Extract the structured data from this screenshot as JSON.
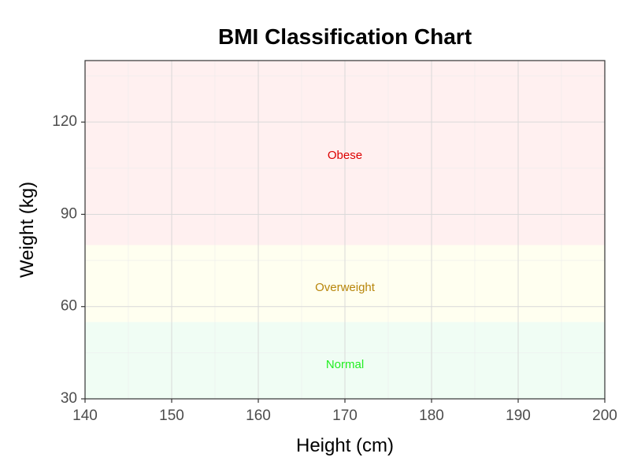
{
  "chart_data": {
    "type": "area",
    "title": "BMI Classification Chart",
    "xlabel": "Height (cm)",
    "ylabel": "Weight (kg)",
    "xlim": [
      140,
      200
    ],
    "ylim": [
      30,
      140
    ],
    "x_ticks": [
      140,
      150,
      160,
      170,
      180,
      190,
      200
    ],
    "y_ticks": [
      30,
      60,
      90,
      120
    ],
    "grid": true,
    "legend": "none",
    "zones": [
      {
        "label": "Normal",
        "y_min": 30,
        "y_max": 55,
        "fill": "#f0fdf4",
        "text_color": "#22ee22",
        "label_x": 170,
        "label_y": 41
      },
      {
        "label": "Overweight",
        "y_min": 55,
        "y_max": 80,
        "fill": "#fffff0",
        "text_color": "#b8860b",
        "label_x": 170,
        "label_y": 66
      },
      {
        "label": "Obese",
        "y_min": 80,
        "y_max": 140,
        "fill": "#fff0f0",
        "text_color": "#dd0000",
        "label_x": 170,
        "label_y": 109
      }
    ]
  }
}
